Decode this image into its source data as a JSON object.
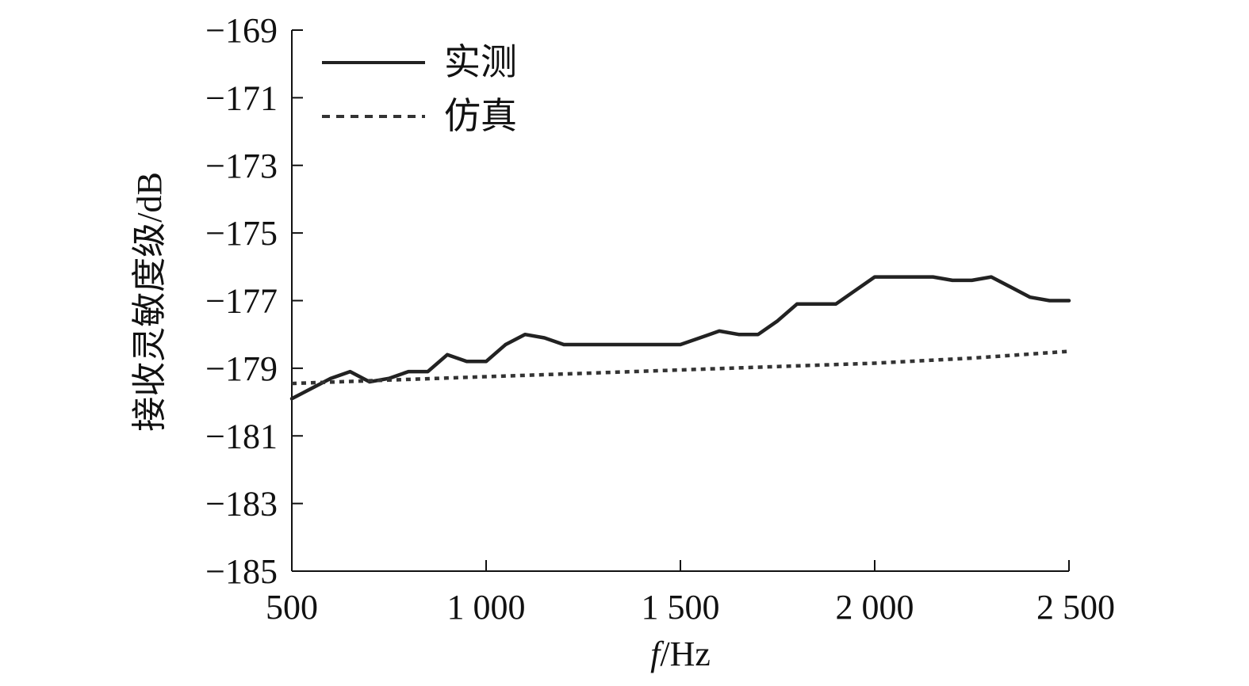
{
  "chart_data": {
    "type": "line",
    "xlabel_italic": "f",
    "xlabel_unit": "/Hz",
    "ylabel": "接收灵敏度级/dB",
    "xlim": [
      500,
      2500
    ],
    "ylim": [
      -185,
      -169
    ],
    "x_ticks": [
      500,
      1000,
      1500,
      2000,
      2500
    ],
    "x_tick_labels": [
      "500",
      "1 000",
      "1 500",
      "2 000",
      "2 500"
    ],
    "y_ticks": [
      -169,
      -171,
      -173,
      -175,
      -177,
      -179,
      -181,
      -183,
      -185
    ],
    "y_tick_labels": [
      "−169",
      "−171",
      "−173",
      "−175",
      "−177",
      "−179",
      "−181",
      "−183",
      "−185"
    ],
    "legend_position": "top-left",
    "series": [
      {
        "name": "实测",
        "style": "solid",
        "color": "#222222",
        "x": [
          500,
          550,
          600,
          650,
          700,
          750,
          800,
          850,
          900,
          950,
          1000,
          1050,
          1100,
          1150,
          1200,
          1250,
          1300,
          1350,
          1400,
          1450,
          1500,
          1550,
          1600,
          1650,
          1700,
          1750,
          1800,
          1850,
          1900,
          1950,
          2000,
          2050,
          2100,
          2150,
          2200,
          2250,
          2300,
          2350,
          2400,
          2450,
          2500
        ],
        "y": [
          -179.9,
          -179.6,
          -179.3,
          -179.1,
          -179.4,
          -179.3,
          -179.1,
          -179.1,
          -178.6,
          -178.8,
          -178.8,
          -178.3,
          -178.0,
          -178.1,
          -178.3,
          -178.3,
          -178.3,
          -178.3,
          -178.3,
          -178.3,
          -178.3,
          -178.1,
          -177.9,
          -178.0,
          -178.0,
          -177.6,
          -177.1,
          -177.1,
          -177.1,
          -176.7,
          -176.3,
          -176.3,
          -176.3,
          -176.3,
          -176.4,
          -176.4,
          -176.3,
          -176.6,
          -176.9,
          -177.0,
          -177.0
        ]
      },
      {
        "name": "仿真",
        "style": "dashed",
        "color": "#333333",
        "x": [
          500,
          750,
          1000,
          1250,
          1500,
          1750,
          2000,
          2250,
          2500
        ],
        "y": [
          -179.45,
          -179.35,
          -179.25,
          -179.15,
          -179.05,
          -178.95,
          -178.85,
          -178.7,
          -178.5
        ]
      }
    ]
  }
}
